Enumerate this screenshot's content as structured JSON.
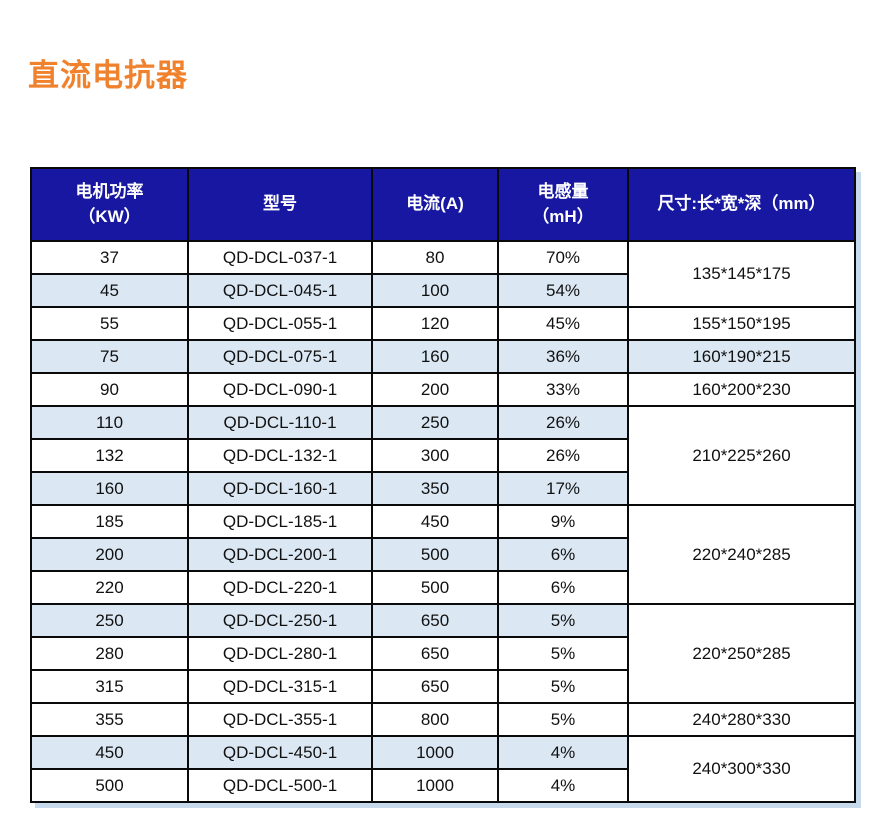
{
  "title": "直流电抗器",
  "colors": {
    "accent_orange": "#F0812D",
    "header_navy": "#1717A1",
    "stripe_blue": "#DBE8F4",
    "grid_black": "#0A0A0A",
    "shadow_blue": "#C6DAEC"
  },
  "table": {
    "headers": [
      {
        "line1": "电机功率",
        "line2": "（KW）"
      },
      {
        "line1": "型号",
        "line2": ""
      },
      {
        "line1": "电流(A)",
        "line2": ""
      },
      {
        "line1": "电感量",
        "line2": "（mH）"
      },
      {
        "line1": "尺寸:长*宽*深（mm）",
        "line2": ""
      }
    ],
    "rows": [
      {
        "power": "37",
        "model": "QD-DCL-037-1",
        "current": "80",
        "inductance": "70%",
        "shaded": false,
        "dims": {
          "text": "135*145*175",
          "span": 2
        }
      },
      {
        "power": "45",
        "model": "QD-DCL-045-1",
        "current": "100",
        "inductance": "54%",
        "shaded": true,
        "dims": null
      },
      {
        "power": "55",
        "model": "QD-DCL-055-1",
        "current": "120",
        "inductance": "45%",
        "shaded": false,
        "dims": {
          "text": "155*150*195",
          "span": 1
        }
      },
      {
        "power": "75",
        "model": "QD-DCL-075-1",
        "current": "160",
        "inductance": "36%",
        "shaded": true,
        "dims": {
          "text": "160*190*215",
          "span": 1
        }
      },
      {
        "power": "90",
        "model": "QD-DCL-090-1",
        "current": "200",
        "inductance": "33%",
        "shaded": false,
        "dims": {
          "text": "160*200*230",
          "span": 1
        }
      },
      {
        "power": "110",
        "model": "QD-DCL-110-1",
        "current": "250",
        "inductance": "26%",
        "shaded": true,
        "dims": {
          "text": "210*225*260",
          "span": 3
        }
      },
      {
        "power": "132",
        "model": "QD-DCL-132-1",
        "current": "300",
        "inductance": "26%",
        "shaded": false,
        "dims": null
      },
      {
        "power": "160",
        "model": "QD-DCL-160-1",
        "current": "350",
        "inductance": "17%",
        "shaded": true,
        "dims": null
      },
      {
        "power": "185",
        "model": "QD-DCL-185-1",
        "current": "450",
        "inductance": "9%",
        "shaded": false,
        "dims": {
          "text": "220*240*285",
          "span": 3
        }
      },
      {
        "power": "200",
        "model": "QD-DCL-200-1",
        "current": "500",
        "inductance": "6%",
        "shaded": true,
        "dims": null
      },
      {
        "power": "220",
        "model": "QD-DCL-220-1",
        "current": "500",
        "inductance": "6%",
        "shaded": false,
        "dims": null
      },
      {
        "power": "250",
        "model": "QD-DCL-250-1",
        "current": "650",
        "inductance": "5%",
        "shaded": true,
        "dims": {
          "text": "220*250*285",
          "span": 3
        }
      },
      {
        "power": "280",
        "model": "QD-DCL-280-1",
        "current": "650",
        "inductance": "5%",
        "shaded": false,
        "dims": null
      },
      {
        "power": "315",
        "model": "QD-DCL-315-1",
        "current": "650",
        "inductance": "5%",
        "shaded": false,
        "dims": null
      },
      {
        "power": "355",
        "model": "QD-DCL-355-1",
        "current": "800",
        "inductance": "5%",
        "shaded": false,
        "dims": {
          "text": "240*280*330",
          "span": 1
        }
      },
      {
        "power": "450",
        "model": "QD-DCL-450-1",
        "current": "1000",
        "inductance": "4%",
        "shaded": true,
        "dims": {
          "text": "240*300*330",
          "span": 2
        }
      },
      {
        "power": "500",
        "model": "QD-DCL-500-1",
        "current": "1000",
        "inductance": "4%",
        "shaded": false,
        "dims": null
      }
    ]
  }
}
